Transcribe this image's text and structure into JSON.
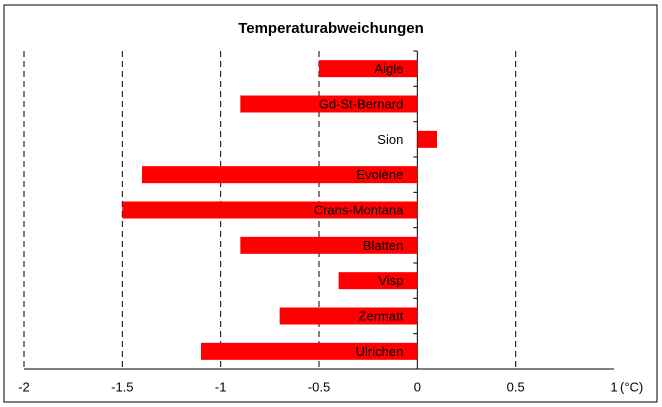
{
  "chart_data": {
    "type": "bar",
    "orientation": "horizontal",
    "title": "Temperaturabweichungen",
    "x_label": "(°C)",
    "categories": [
      "Aigle",
      "Gd-St-Bernard",
      "Sion",
      "Evolène",
      "Crans-Montana",
      "Blatten",
      "Visp",
      "Zermatt",
      "Ulrichen"
    ],
    "values": [
      -0.5,
      -0.9,
      0.1,
      -1.4,
      -1.5,
      -0.9,
      -0.4,
      -0.7,
      -1.1
    ],
    "color": "#ff0000",
    "xlim": [
      -2,
      1
    ],
    "xticks": [
      -2,
      -1.5,
      -1,
      -0.5,
      0,
      0.5,
      1
    ],
    "grid": true
  }
}
